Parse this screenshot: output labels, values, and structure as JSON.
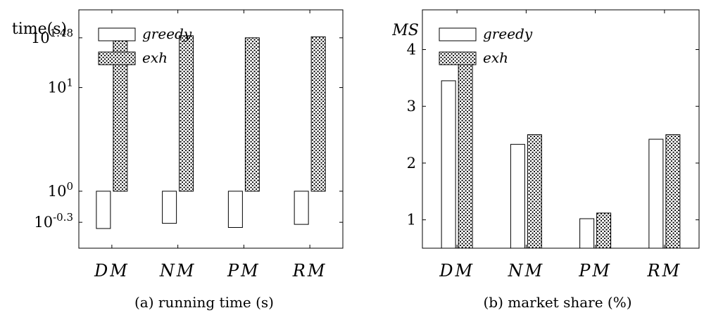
{
  "chart_data": [
    {
      "type": "bar",
      "caption": "(a) running time (s)",
      "ylabel": "time(s)",
      "log_scale": true,
      "ylim_log10": [
        -0.55,
        1.75
      ],
      "categories": [
        "DM",
        "NM",
        "PM",
        "RM"
      ],
      "y_ticks": [
        {
          "base": "10",
          "exp": "-0.3",
          "log10": -0.3
        },
        {
          "base": "10",
          "exp": "0",
          "log10": 0
        },
        {
          "base": "10",
          "exp": "1",
          "log10": 1
        },
        {
          "base": "10",
          "exp": "1.48",
          "log10": 1.48
        }
      ],
      "series": [
        {
          "name": "greedy",
          "style": "empty",
          "bar_from_log10": 0,
          "values_log10": [
            -0.36,
            -0.31,
            -0.35,
            -0.32
          ]
        },
        {
          "name": "exh",
          "style": "dotted",
          "bar_from_log10": 0,
          "values_log10": [
            1.48,
            1.5,
            1.48,
            1.49
          ]
        }
      ],
      "legend_position": "top-left",
      "grid": false
    },
    {
      "type": "bar",
      "caption": "(b) market share (%)",
      "ylabel": "MS",
      "ylim": [
        0.5,
        4.7
      ],
      "categories": [
        "DM",
        "NM",
        "PM",
        "RM"
      ],
      "y_ticks": [
        1,
        2,
        3,
        4
      ],
      "series": [
        {
          "name": "greedy",
          "style": "empty",
          "values": [
            3.45,
            2.33,
            1.02,
            2.42
          ]
        },
        {
          "name": "exh",
          "style": "dotted",
          "values": [
            3.88,
            2.5,
            1.12,
            2.5
          ]
        }
      ],
      "legend_position": "top-left",
      "grid": false
    }
  ]
}
